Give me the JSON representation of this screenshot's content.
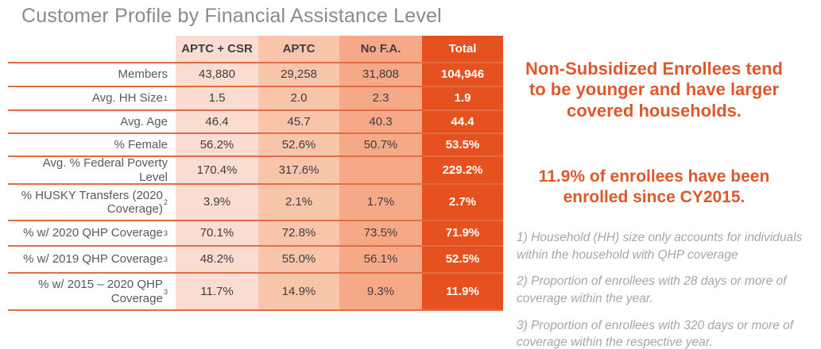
{
  "title": "Customer Profile by Financial Assistance Level",
  "table": {
    "columns": [
      "APTC + CSR",
      "APTC",
      "No F.A.",
      "Total"
    ],
    "rows": [
      {
        "label": "Members",
        "sup": "",
        "values": [
          "43,880",
          "29,258",
          "31,808",
          "104,946"
        ]
      },
      {
        "label": "Avg. HH Size",
        "sup": "1",
        "values": [
          "1.5",
          "2.0",
          "2.3",
          "1.9"
        ]
      },
      {
        "label": "Avg. Age",
        "sup": "",
        "values": [
          "46.4",
          "45.7",
          "40.3",
          "44.4"
        ]
      },
      {
        "label": "% Female",
        "sup": "",
        "values": [
          "56.2%",
          "52.6%",
          "50.7%",
          "53.5%"
        ]
      },
      {
        "label": "Avg. % Federal Poverty Level",
        "sup": "",
        "values": [
          "170.4%",
          "317.6%",
          "",
          "229.2%"
        ]
      },
      {
        "label": "% HUSKY Transfers (2020 Coverage)",
        "sup": "2",
        "values": [
          "3.9%",
          "2.1%",
          "1.7%",
          "2.7%"
        ]
      },
      {
        "label": "% w/ 2020 QHP Coverage",
        "sup": "3",
        "values": [
          "70.1%",
          "72.8%",
          "73.5%",
          "71.9%"
        ]
      },
      {
        "label": "% w/ 2019 QHP Coverage",
        "sup": "3",
        "values": [
          "48.2%",
          "55.0%",
          "56.1%",
          "52.5%"
        ]
      },
      {
        "label": "% w/ 2015 – 2020 QHP Coverage",
        "sup": "3",
        "values": [
          "11.7%",
          "14.9%",
          "9.3%",
          "11.9%"
        ]
      }
    ],
    "column_colors": [
      "#fbdcd0",
      "#f8c5ab",
      "#f5a986",
      "#e5521f"
    ],
    "divider_color": "#e46c44"
  },
  "callouts": {
    "primary": "Non-Subsidized Enrollees tend to be younger and have larger covered households.",
    "secondary": "11.9% of enrollees have been enrolled since CY2015.",
    "color": "#df582a"
  },
  "footnotes": [
    "1) Household (HH) size only accounts for individuals within the household with QHP coverage",
    "2) Proportion of enrollees with 28 days or more of coverage within the year.",
    "3) Proportion of enrollees with 320 days or more of coverage within the respective year."
  ]
}
